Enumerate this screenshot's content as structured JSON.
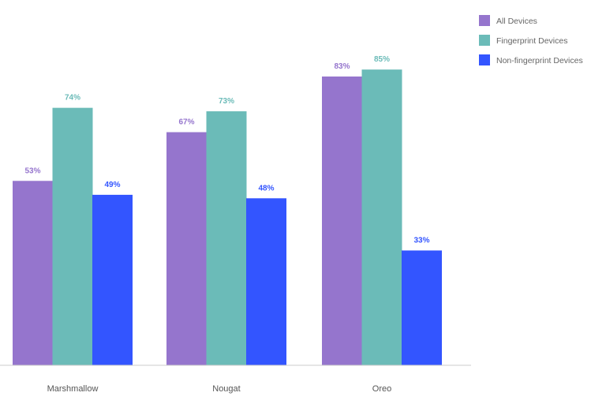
{
  "chart_data": {
    "type": "bar",
    "title": "",
    "xlabel": "",
    "ylabel": "",
    "ylim": [
      0,
      100
    ],
    "grid": false,
    "legend_position": "top-right",
    "categories": [
      "Marshmallow",
      "Nougat",
      "Oreo"
    ],
    "series": [
      {
        "name": "All Devices",
        "color": "#9575cd",
        "values": [
          53,
          67,
          83
        ],
        "labels": [
          "53%",
          "67%",
          "83%"
        ]
      },
      {
        "name": "Fingerprint Devices",
        "color": "#6bbbb8",
        "values": [
          74,
          73,
          85
        ],
        "labels": [
          "74%",
          "73%",
          "85%"
        ]
      },
      {
        "name": "Non-fingerprint Devices",
        "color": "#3355ff",
        "values": [
          49,
          48,
          33
        ],
        "labels": [
          "49%",
          "48%",
          "33%"
        ]
      }
    ]
  }
}
